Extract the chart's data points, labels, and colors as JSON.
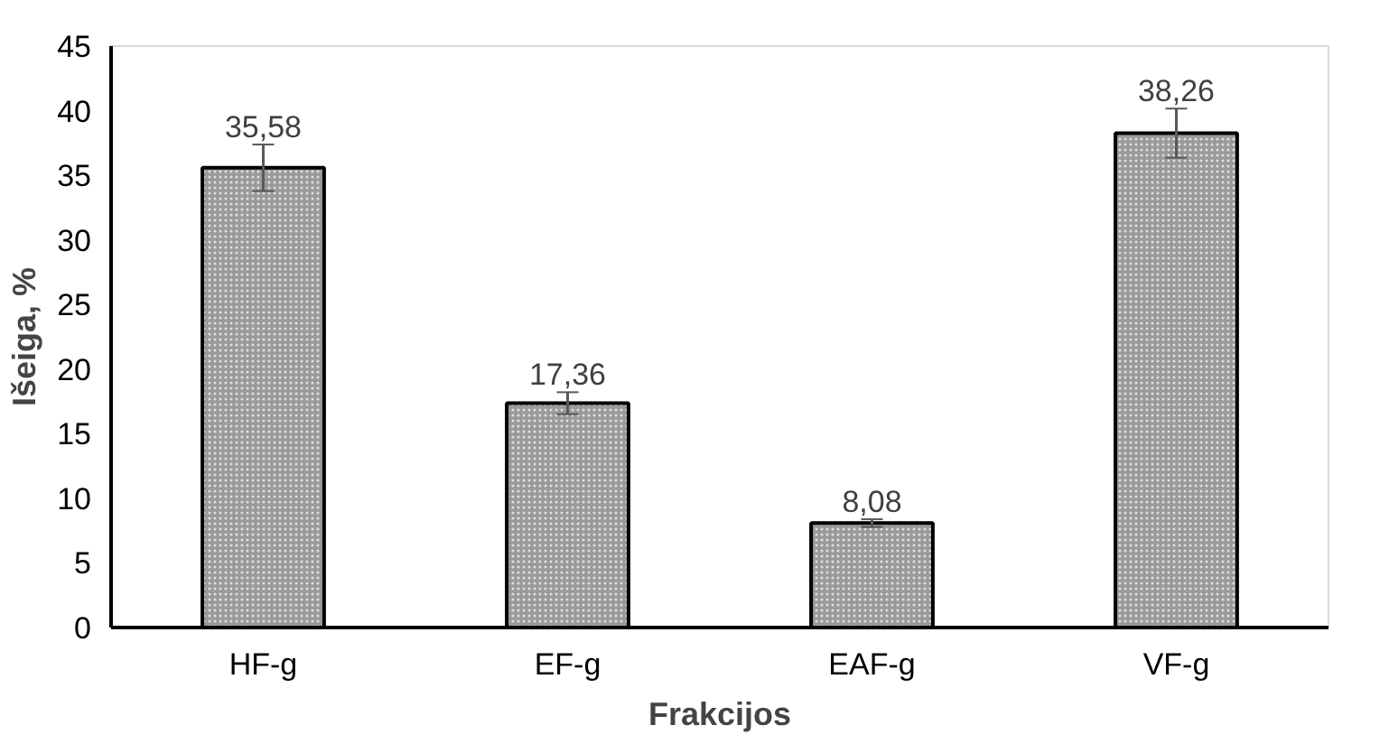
{
  "chart_data": {
    "type": "bar",
    "xlabel": "Frakcijos",
    "ylabel": "Išeiga, %",
    "categories": [
      "HF-g",
      "EF-g",
      "EAF-g",
      "VF-g"
    ],
    "values": [
      35.58,
      17.36,
      8.08,
      38.26
    ],
    "value_labels": [
      "35,58",
      "17,36",
      "8,08",
      "38,26"
    ],
    "errors": [
      1.8,
      0.85,
      0.3,
      1.9
    ],
    "color": "#9a9a9a",
    "ylim": [
      0,
      45
    ],
    "yticks": [
      0,
      5,
      10,
      15,
      20,
      25,
      30,
      35,
      40,
      45
    ],
    "grid": false
  }
}
